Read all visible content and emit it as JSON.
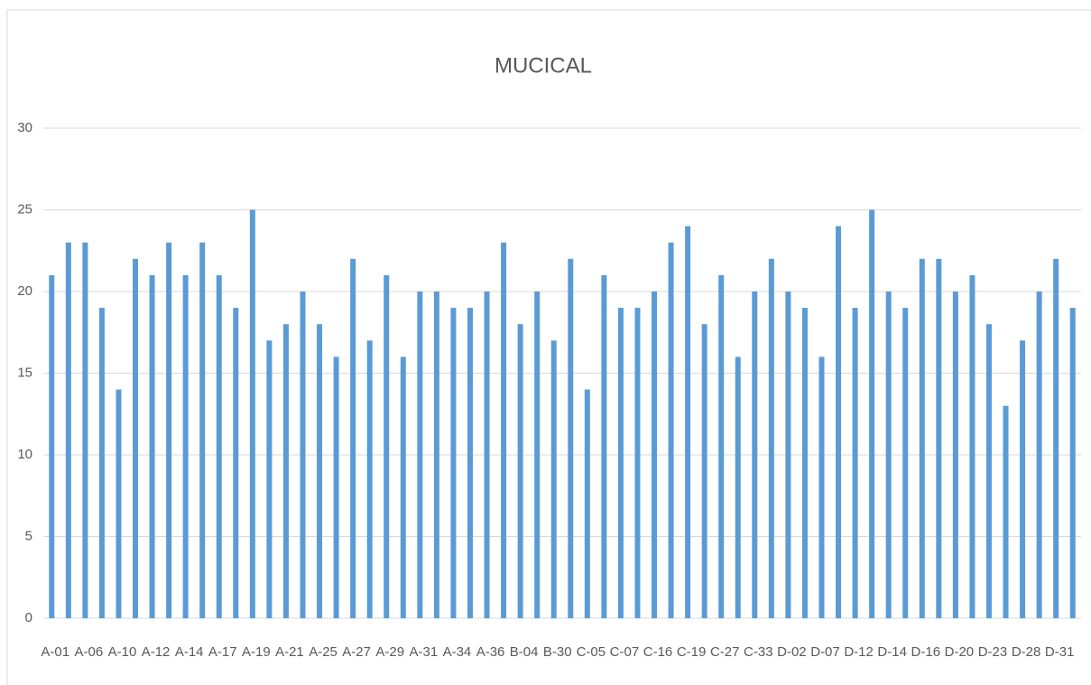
{
  "chart_data": {
    "type": "bar",
    "title": "MUCICAL",
    "categories": [
      "A-01",
      null,
      "A-06",
      null,
      "A-10",
      null,
      "A-12",
      null,
      "A-14",
      null,
      "A-17",
      null,
      "A-19",
      null,
      "A-21",
      null,
      "A-25",
      null,
      "A-27",
      null,
      "A-29",
      null,
      "A-31",
      null,
      "A-34",
      null,
      "A-36",
      null,
      "B-04",
      null,
      "B-30",
      null,
      "C-05",
      null,
      "C-07",
      null,
      "C-16",
      null,
      "C-19",
      null,
      "C-27",
      null,
      "C-33",
      null,
      "D-02",
      null,
      "D-07",
      null,
      "D-12",
      null,
      "D-14",
      null,
      "D-16",
      null,
      "D-20",
      null,
      "D-23",
      null,
      "D-28",
      null,
      "D-31",
      null
    ],
    "values": [
      21,
      23,
      23,
      19,
      14,
      22,
      21,
      23,
      21,
      23,
      21,
      19,
      25,
      17,
      18,
      20,
      18,
      16,
      22,
      17,
      21,
      16,
      20,
      20,
      19,
      19,
      20,
      23,
      18,
      20,
      17,
      22,
      14,
      21,
      19,
      19,
      20,
      23,
      24,
      18,
      21,
      16,
      20,
      22,
      20,
      19,
      16,
      24,
      19,
      25,
      20,
      19,
      22,
      22,
      20,
      21,
      18,
      13,
      17,
      20,
      22,
      19
    ],
    "color": "#5b9bd5",
    "ylim": [
      0,
      30
    ],
    "yticks": [
      0,
      5,
      10,
      15,
      20,
      25,
      30
    ],
    "grid": true
  }
}
